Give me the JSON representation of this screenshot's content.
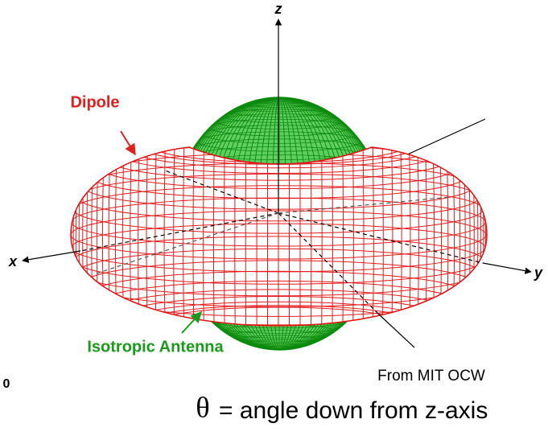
{
  "labels": {
    "z": "z",
    "x": "x",
    "y": "y",
    "dipole": "Dipole",
    "isotropic": "Isotropic Antenna",
    "credit": "From MIT OCW",
    "edge": "0",
    "caption_symbol": "θ",
    "caption_text": "= angle down from z-axis"
  }
}
